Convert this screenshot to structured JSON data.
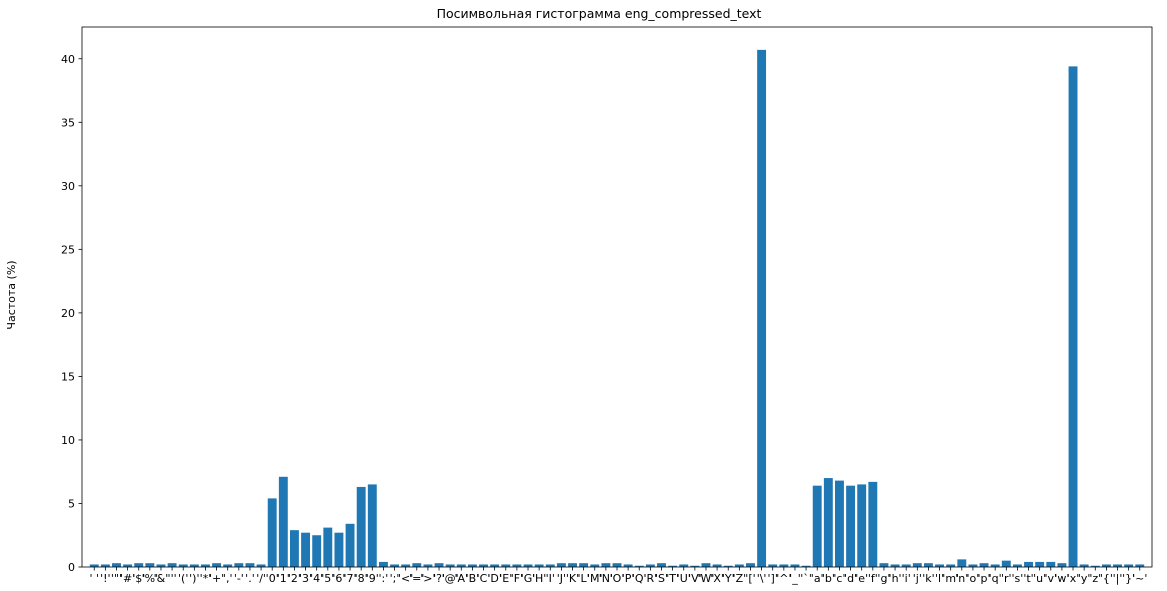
{
  "chart_data": {
    "type": "bar",
    "title": "Посимвольная гистограмма eng_compressed_text",
    "xlabel": "",
    "ylabel": "Частота (%)",
    "ylim": [
      0,
      42.5
    ],
    "yticks": [
      0,
      5,
      10,
      15,
      20,
      25,
      30,
      35,
      40
    ],
    "grid": false,
    "bar_color": "#1f77b4",
    "categories": [
      " ",
      "!",
      "\"",
      "#",
      "$",
      "%",
      "&",
      "'",
      "(",
      ")",
      "*",
      "+",
      ",",
      "-",
      ".",
      "/",
      "0",
      "1",
      "2",
      "3",
      "4",
      "5",
      "6",
      "7",
      "8",
      "9",
      ":",
      ";",
      "<",
      "=",
      ">",
      "?",
      "@",
      "A",
      "B",
      "C",
      "D",
      "E",
      "F",
      "G",
      "H",
      "I",
      "J",
      "K",
      "L",
      "M",
      "N",
      "O",
      "P",
      "Q",
      "R",
      "S",
      "T",
      "U",
      "V",
      "W",
      "X",
      "Y",
      "Z",
      "[",
      "\\",
      "]",
      "^",
      "_",
      "`",
      "a",
      "b",
      "c",
      "d",
      "e",
      "f",
      "g",
      "h",
      "i",
      "j",
      "k",
      "l",
      "m",
      "n",
      "o",
      "p",
      "q",
      "r",
      "s",
      "t",
      "u",
      "v",
      "w",
      "x",
      "y",
      "z",
      "{",
      "|",
      "}",
      "~"
    ],
    "values": [
      0.2,
      0.2,
      0.3,
      0.2,
      0.3,
      0.3,
      0.2,
      0.3,
      0.2,
      0.2,
      0.2,
      0.3,
      0.2,
      0.3,
      0.3,
      0.2,
      5.4,
      7.1,
      2.9,
      2.7,
      2.5,
      3.1,
      2.7,
      3.4,
      6.3,
      6.5,
      0.4,
      0.2,
      0.2,
      0.3,
      0.2,
      0.3,
      0.2,
      0.2,
      0.2,
      0.2,
      0.2,
      0.2,
      0.2,
      0.2,
      0.2,
      0.2,
      0.3,
      0.3,
      0.3,
      0.2,
      0.3,
      0.3,
      0.2,
      0.1,
      0.2,
      0.3,
      0.1,
      0.2,
      0.1,
      0.3,
      0.2,
      0.1,
      0.2,
      0.3,
      40.7,
      0.2,
      0.2,
      0.2,
      0.1,
      6.4,
      7.0,
      6.8,
      6.4,
      6.5,
      6.7,
      0.3,
      0.2,
      0.2,
      0.3,
      0.3,
      0.2,
      0.2,
      0.6,
      0.2,
      0.3,
      0.2,
      0.5,
      0.2,
      0.4,
      0.4,
      0.4,
      0.3,
      39.4,
      0.2,
      0.1,
      0.2,
      0.2,
      0.2,
      0.2
    ]
  }
}
